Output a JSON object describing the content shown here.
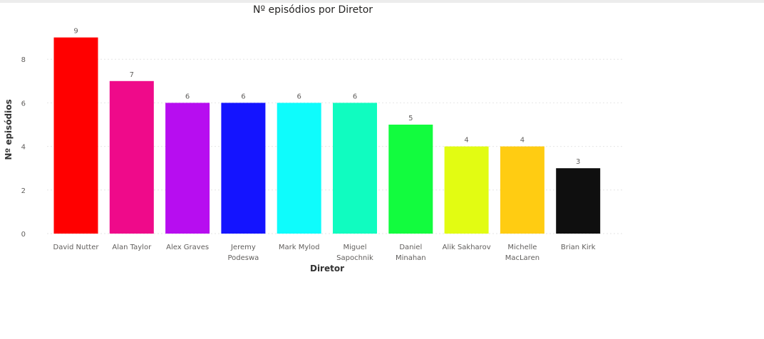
{
  "chart_data": {
    "type": "bar",
    "title": "Nº episódios por Diretor",
    "xlabel": "Diretor",
    "ylabel": "Nº episódios",
    "ylim": [
      0,
      9
    ],
    "yticks": [
      0,
      2,
      4,
      6,
      8
    ],
    "grid": true,
    "categories": [
      [
        "David Nutter"
      ],
      [
        "Alan Taylor"
      ],
      [
        "Alex Graves"
      ],
      [
        "Jeremy",
        "Podeswa"
      ],
      [
        "Mark Mylod"
      ],
      [
        "Miguel",
        "Sapochnik"
      ],
      [
        "Daniel",
        "Minahan"
      ],
      [
        "Alik Sakharov"
      ],
      [
        "Michelle",
        "MacLaren"
      ],
      [
        "Brian Kirk"
      ]
    ],
    "values": [
      9,
      7,
      6,
      6,
      6,
      6,
      5,
      4,
      4,
      3
    ],
    "colors": [
      "#ff0000",
      "#ef0a8a",
      "#b70df0",
      "#1414ff",
      "#0efcfc",
      "#10fcc0",
      "#12fc3e",
      "#e2fc12",
      "#ffcc12",
      "#0f0f0f"
    ]
  }
}
